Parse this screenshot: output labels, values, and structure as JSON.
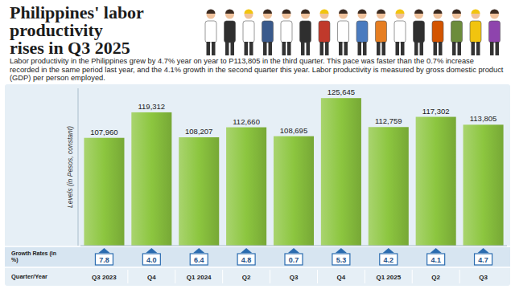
{
  "chart_data": {
    "type": "bar",
    "title": "Philippines' labor productivity rises in Q3 2025",
    "subtitle": "Labor productivity in the Philippines grew by 4.7% year on year to P113,805 in the third quarter. This pace was faster than the 0.7% increase recorded in the same period last year, and the 4.1% growth in the second quarter this year. Labor productivity is measured by gross domestic product (GDP) per person employed.",
    "y_label": "Levels (in Pesos, constant)",
    "x_label": "Quarter/Year",
    "categories": [
      "Q3 2023",
      "Q4",
      "Q1 2024",
      "Q2",
      "Q3",
      "Q4",
      "Q1 2025",
      "Q2",
      "Q3"
    ],
    "values": [
      107960,
      119312,
      108207,
      112660,
      108695,
      125645,
      112759,
      117302,
      113805
    ],
    "value_labels": [
      "107,960",
      "119,312",
      "108,207",
      "112,660",
      "108,695",
      "125,645",
      "112,759",
      "117,302",
      "113,805"
    ],
    "color": "#8cc63f",
    "ylim": [
      60000,
      130000
    ],
    "tick_labels": false,
    "data_labels": true,
    "growth_label": "Growth Rates (in %)",
    "growth_values": [
      7.8,
      4.0,
      6.4,
      4.8,
      0.7,
      5.3,
      4.2,
      4.1,
      4.7
    ],
    "growth_value_labels": [
      "7.8",
      "4.0",
      "6.4",
      "4.8",
      "0.7",
      "5.3",
      "4.2",
      "4.1",
      "4.7"
    ]
  }
}
